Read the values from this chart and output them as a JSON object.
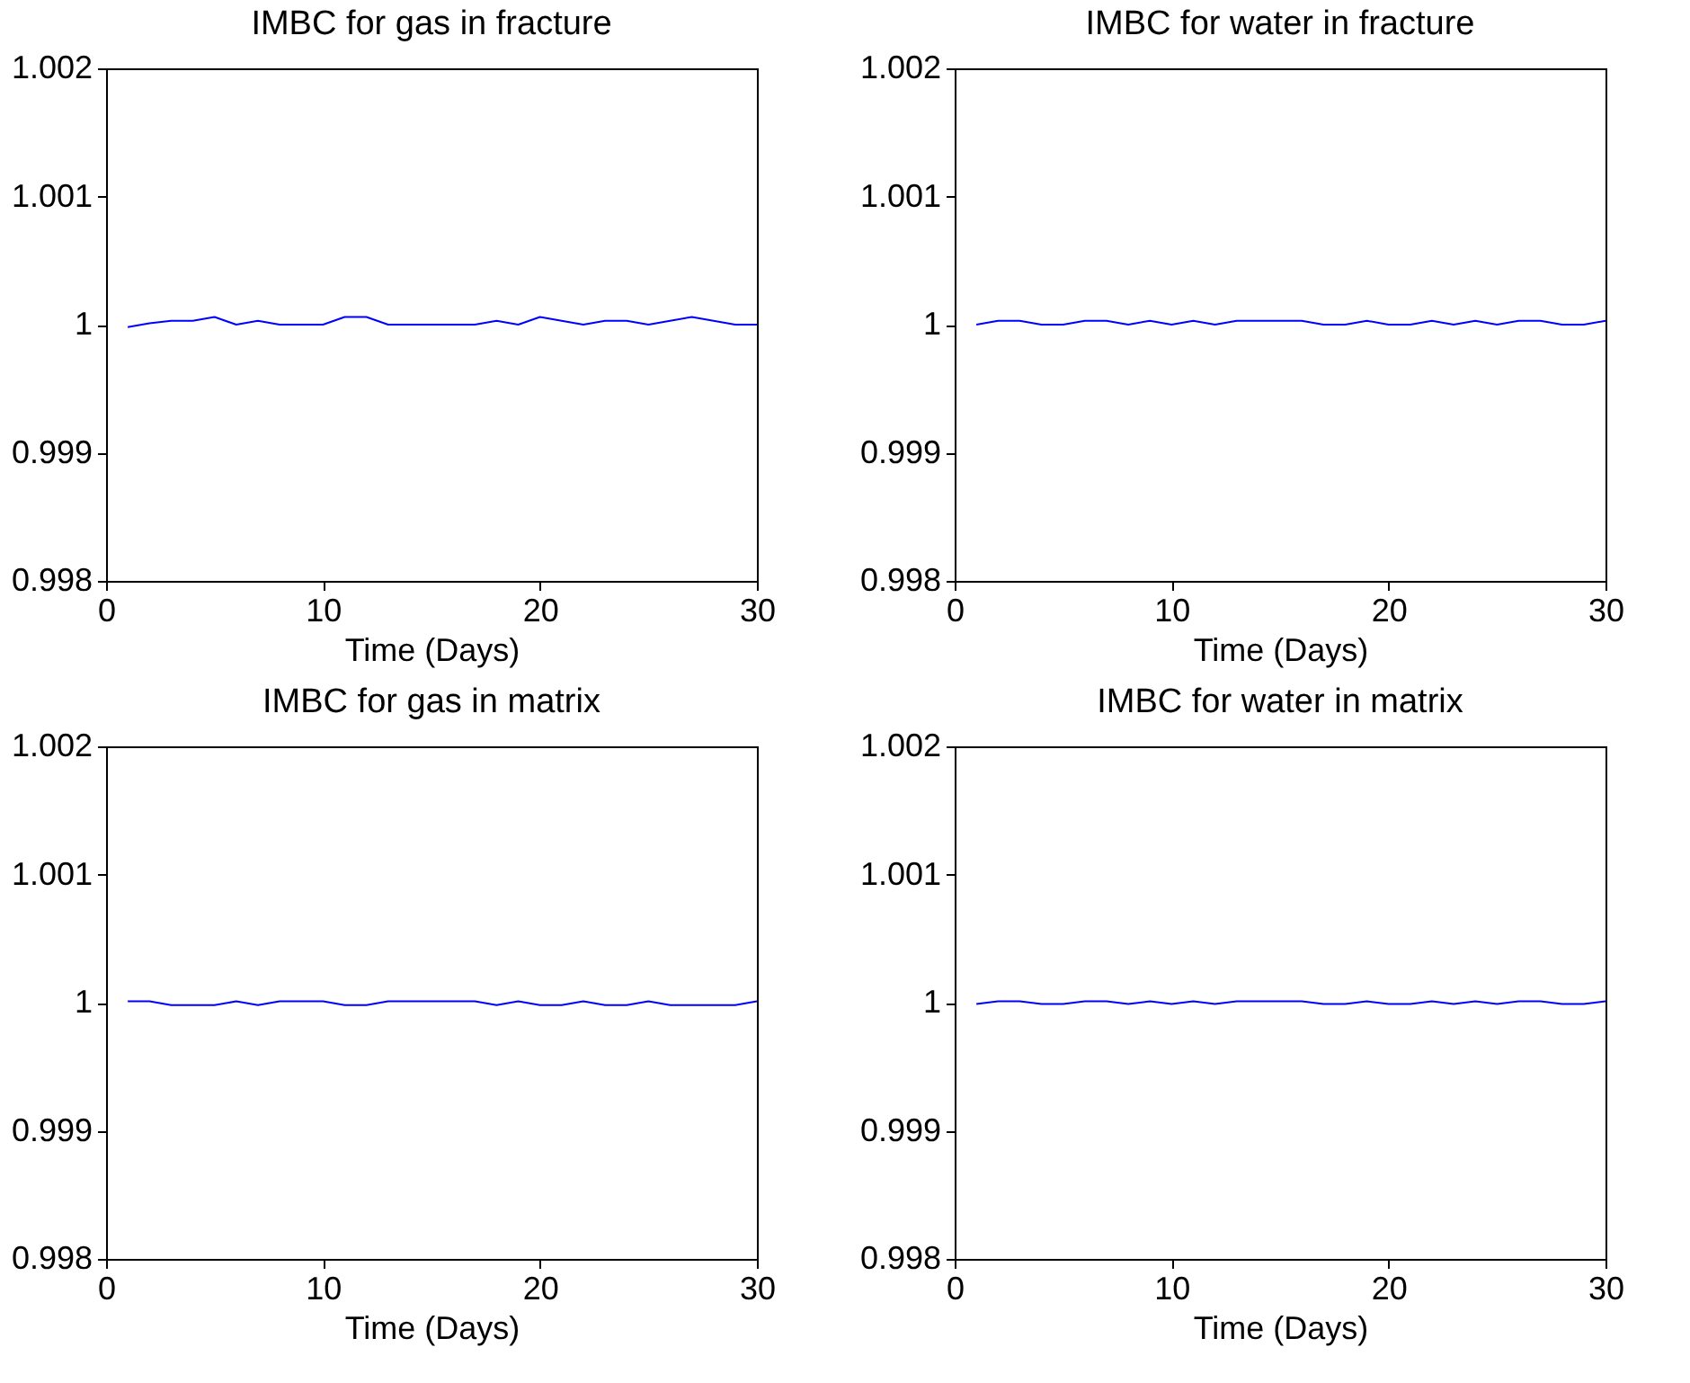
{
  "chart_data": [
    {
      "type": "line",
      "title": "IMBC for gas in fracture",
      "xlabel": "Time (Days)",
      "x": [
        1,
        2,
        3,
        4,
        5,
        6,
        7,
        8,
        9,
        10,
        11,
        12,
        13,
        14,
        15,
        16,
        17,
        18,
        19,
        20,
        21,
        22,
        23,
        24,
        25,
        26,
        27,
        28,
        29,
        30
      ],
      "series": [
        {
          "color": "#0000ff",
          "values": [
            0.99998,
            1.00001,
            1.00003,
            1.00003,
            1.00006,
            1.0,
            1.00003,
            1.0,
            1.0,
            1.0,
            1.00006,
            1.00006,
            1.0,
            1.0,
            1.0,
            1.0,
            1.0,
            1.00003,
            1.0,
            1.00006,
            1.00003,
            1.0,
            1.00003,
            1.00003,
            1.0,
            1.00003,
            1.00006,
            1.00003,
            1.0,
            1.0
          ]
        }
      ],
      "xlim": [
        0,
        30
      ],
      "xticks": [
        0,
        10,
        20,
        30
      ],
      "ylim": [
        0.998,
        1.002
      ],
      "yticks": [
        0.998,
        0.999,
        1,
        1.001,
        1.002
      ],
      "grid": false,
      "legend": false,
      "marker": "none",
      "line_style": "solid"
    },
    {
      "type": "line",
      "title": "IMBC for water in fracture",
      "xlabel": "Time (Days)",
      "x": [
        1,
        2,
        3,
        4,
        5,
        6,
        7,
        8,
        9,
        10,
        11,
        12,
        13,
        14,
        15,
        16,
        17,
        18,
        19,
        20,
        21,
        22,
        23,
        24,
        25,
        26,
        27,
        28,
        29,
        30
      ],
      "series": [
        {
          "color": "#0000ff",
          "values": [
            1.0,
            1.00003,
            1.00003,
            1.0,
            1.0,
            1.00003,
            1.00003,
            1.0,
            1.00003,
            1.0,
            1.00003,
            1.0,
            1.00003,
            1.00003,
            1.00003,
            1.00003,
            1.0,
            1.0,
            1.00003,
            1.0,
            1.0,
            1.00003,
            1.0,
            1.00003,
            1.0,
            1.00003,
            1.00003,
            1.0,
            1.0,
            1.00003
          ]
        }
      ],
      "xlim": [
        0,
        30
      ],
      "xticks": [
        0,
        10,
        20,
        30
      ],
      "ylim": [
        0.998,
        1.002
      ],
      "yticks": [
        0.998,
        0.999,
        1,
        1.001,
        1.002
      ],
      "grid": false,
      "legend": false,
      "marker": "none",
      "line_style": "solid"
    },
    {
      "type": "line",
      "title": "IMBC for gas in matrix",
      "xlabel": "Time (Days)",
      "x": [
        1,
        2,
        3,
        4,
        5,
        6,
        7,
        8,
        9,
        10,
        11,
        12,
        13,
        14,
        15,
        16,
        17,
        18,
        19,
        20,
        21,
        22,
        23,
        24,
        25,
        26,
        27,
        28,
        29,
        30
      ],
      "series": [
        {
          "color": "#0000ff",
          "values": [
            1.00001,
            1.00001,
            0.99998,
            0.99998,
            0.99998,
            1.00001,
            0.99998,
            1.00001,
            1.00001,
            1.00001,
            0.99998,
            0.99998,
            1.00001,
            1.00001,
            1.00001,
            1.00001,
            1.00001,
            0.99998,
            1.00001,
            0.99998,
            0.99998,
            1.00001,
            0.99998,
            0.99998,
            1.00001,
            0.99998,
            0.99998,
            0.99998,
            0.99998,
            1.00001
          ]
        }
      ],
      "xlim": [
        0,
        30
      ],
      "xticks": [
        0,
        10,
        20,
        30
      ],
      "ylim": [
        0.998,
        1.002
      ],
      "yticks": [
        0.998,
        0.999,
        1,
        1.001,
        1.002
      ],
      "grid": false,
      "legend": false,
      "marker": "none",
      "line_style": "solid"
    },
    {
      "type": "line",
      "title": "IMBC for water in matrix",
      "xlabel": "Time (Days)",
      "x": [
        1,
        2,
        3,
        4,
        5,
        6,
        7,
        8,
        9,
        10,
        11,
        12,
        13,
        14,
        15,
        16,
        17,
        18,
        19,
        20,
        21,
        22,
        23,
        24,
        25,
        26,
        27,
        28,
        29,
        30
      ],
      "series": [
        {
          "color": "#0000ff",
          "values": [
            0.99999,
            1.00001,
            1.00001,
            0.99999,
            0.99999,
            1.00001,
            1.00001,
            0.99999,
            1.00001,
            0.99999,
            1.00001,
            0.99999,
            1.00001,
            1.00001,
            1.00001,
            1.00001,
            0.99999,
            0.99999,
            1.00001,
            0.99999,
            0.99999,
            1.00001,
            0.99999,
            1.00001,
            0.99999,
            1.00001,
            1.00001,
            0.99999,
            0.99999,
            1.00001
          ]
        }
      ],
      "xlim": [
        0,
        30
      ],
      "xticks": [
        0,
        10,
        20,
        30
      ],
      "ylim": [
        0.998,
        1.002
      ],
      "yticks": [
        0.998,
        0.999,
        1,
        1.001,
        1.002
      ],
      "grid": false,
      "legend": false,
      "marker": "none",
      "line_style": "solid"
    }
  ]
}
